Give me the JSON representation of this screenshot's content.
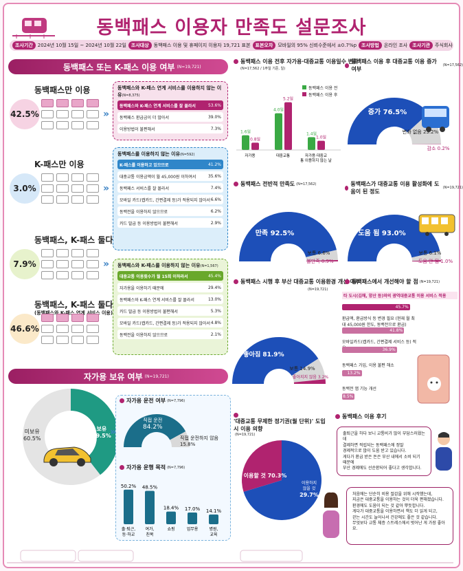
{
  "title": "동백패스 이용자 만족도 설문조사",
  "info": [
    {
      "tag": "조사기간",
      "text": "2024년 10월 15일 ~ 2024년 10월 22일"
    },
    {
      "tag": "조사대상",
      "text": "동백패스 이용 및 휴페이지 이용자 19,721 표본"
    },
    {
      "tag": "표본오차",
      "text": "모바일의 95% 신뢰수준에서 ±0.7%p"
    },
    {
      "tag": "조사방법",
      "text": "온라인 조사"
    },
    {
      "tag": "조사기관",
      "text": "주식회사 서던포스트"
    }
  ],
  "usage": {
    "title": "동백패스 또는 K-패스 이용 여부",
    "n": "(N=19,721)",
    "groups": [
      {
        "label": "동백패스만 이용",
        "pct": "42.5%",
        "color": "#f6d3e3"
      },
      {
        "label": "K-패스만 이용",
        "pct": "3.0%",
        "color": "#d6e8f8"
      },
      {
        "label": "동백패스, K-패스 둘다 비이용",
        "pct": "7.9%",
        "color": "#e7f2cc"
      },
      {
        "label": "동백패스, K-패스 둘다 이용",
        "sub": "(동백패스와 K-패스 연계 서비스 이용)",
        "pct": "46.6%",
        "color": "#fbe9c9"
      }
    ],
    "reasons": [
      {
        "title": "동백패스와 K-패스 연계 서비스를 이용하지 않는 이유",
        "n": "(N=8,375)",
        "accent": "#b0236f",
        "bg": "#f7e1ec",
        "items": [
          [
            "동백패스와 K-패스 연계 서비스를 잘 몰라서",
            "53.6%"
          ],
          [
            "동백패스 환급금이 더 많아서",
            "39.0%"
          ],
          [
            "이용방법이 불편해서",
            "7.3%"
          ]
        ]
      },
      {
        "title": "동백패스를 이용하지 않는 이유",
        "n": "(N=592)",
        "accent": "#2f86c9",
        "bg": "#dceefa",
        "items": [
          [
            "K-패스를 이용하고 있으므로",
            "41.2%"
          ],
          [
            "대중교통 이용금액이 월 45,000원 이하여서",
            "35.6%"
          ],
          [
            "동백패스 서비스를 잘 몰라서",
            "7.4%"
          ],
          [
            "모바일 카드(캡카드, 간편결제 등)가 적용되지 않아서",
            "6.6%"
          ],
          [
            "동백전을 이용하지 않으므로",
            "6.2%"
          ],
          [
            "카드 발급 등 이용방법이 불편해서",
            "2.9%"
          ]
        ]
      },
      {
        "title": "동백패스와 K-패스를 이용하지 않는 이유",
        "n": "(N=1,567)",
        "accent": "#69a82b",
        "bg": "#eaf4d8",
        "items": [
          [
            "대중교통 이용횟수가 월 15회 이하라서",
            "45.4%"
          ],
          [
            "자가용을 이용하기 때문에",
            "29.4%"
          ],
          [
            "동백패스와 K-패스 연계 서비스를 잘 몰라서",
            "13.0%"
          ],
          [
            "카드 발급 등 이용방법이 불편해서",
            "5.3%"
          ],
          [
            "모바일 카드(캡카드, 간편결제 등)가 적용되지 않아서",
            "4.8%"
          ],
          [
            "동백전을 이용하지 않으므로",
            "2.1%"
          ]
        ]
      }
    ]
  },
  "car": {
    "title": "자가용 보유 여부",
    "n": "(N=19,721)",
    "donut": [
      {
        "label": "보유",
        "value": 39.5,
        "color": "#1f9a83",
        "text": "39.5%"
      },
      {
        "label": "미보유",
        "value": 60.5,
        "color": "#e4e4e4",
        "text": "60.5%"
      }
    ],
    "drive": {
      "title": "자가용 운전 여부",
      "n": "(N=7,796)",
      "yes_label": "직접 운전",
      "yes": 84.2,
      "yes_text": "84.2%",
      "no_label": "직접 운전하지 않음",
      "no_text": "15.8%"
    },
    "purpose": {
      "title": "자가용 운행 목적",
      "n": "(N=7,796)",
      "bars": [
        {
          "label": "출·퇴근, 등·하교",
          "value": 50.2,
          "text": "50.2%"
        },
        {
          "label": "여가, 친목",
          "value": 48.5,
          "text": "48.5%"
        },
        {
          "label": "쇼핑",
          "value": 18.4,
          "text": "18.4%"
        },
        {
          "label": "업무용",
          "value": 17.0,
          "text": "17.0%"
        },
        {
          "label": "병원, 교육",
          "value": 14.1,
          "text": "14.1%"
        }
      ]
    }
  },
  "chart_data": [
    {
      "type": "bar",
      "title": "동백패스 이용 전후 자가용·대중교통 이용일수 변화",
      "subtitle": "(N=17,562 / 1주일 기준, 일)",
      "categories": [
        "자가용",
        "대중교통",
        "자가용·대중교통 이용하지 않는 날"
      ],
      "series": [
        {
          "name": "동백패스 이용 전",
          "values": [
            1.6,
            4.0,
            1.4
          ],
          "color": "#3aa944"
        },
        {
          "name": "동백패스 이용 후",
          "values": [
            0.8,
            5.2,
            1.0
          ],
          "color": "#b0236f"
        }
      ],
      "labels": [
        [
          "1.6일",
          "4.0일",
          "1.4일"
        ],
        [
          "0.8일",
          "5.2일",
          "1.0일"
        ]
      ],
      "ylim": [
        0,
        6
      ]
    },
    {
      "type": "pie",
      "title": "동백패스 이용 후 대중교통 이용 증가 여부",
      "n": "(N=17,562)",
      "slices": [
        {
          "label": "증가",
          "value": 76.5,
          "text": "76.5%"
        },
        {
          "label": "변화 없음",
          "value": 23.2,
          "text": "23.2%"
        },
        {
          "label": "감소",
          "value": 0.2,
          "text": "0.2%"
        }
      ]
    },
    {
      "type": "pie",
      "title": "동백패스 전반적 만족도",
      "n": "(N=17,562)",
      "slices": [
        {
          "label": "만족",
          "value": 92.5,
          "text": "92.5%"
        },
        {
          "label": "보통",
          "value": 6.6,
          "text": "6.6%"
        },
        {
          "label": "불만족",
          "value": 0.9,
          "text": "0.9%"
        }
      ]
    },
    {
      "type": "pie",
      "title": "동백패스가 대중교통 이용 활성화에 도움이 된 정도",
      "n": "(N=19,721)",
      "slices": [
        {
          "label": "도움 됨",
          "value": 93.0,
          "text": "93.0%"
        },
        {
          "label": "보통",
          "value": 6.1,
          "text": "6.1%"
        },
        {
          "label": "도움 안 됨",
          "value": 1.0,
          "text": "1.0%"
        }
      ]
    },
    {
      "type": "pie",
      "title": "동백패스 시행 후 부산 대중교통 이용환경 개선 여부",
      "n": "(N=19,721)",
      "slices": [
        {
          "label": "좋아짐",
          "value": 81.9,
          "text": "81.9%"
        },
        {
          "label": "보통",
          "value": 14.9,
          "text": "14.9%"
        },
        {
          "label": "좋아지지 않음",
          "value": 3.2,
          "text": "3.2%"
        }
      ]
    },
    {
      "type": "bar",
      "title": "동백패스에서 개선해야 할 점",
      "n": "(N=19,721)",
      "categories": [
        "타 도시(김해, 양산 등)와의 광역대중교통 이용 서비스 적용",
        "환급액, 환급방식 등 변경 필요 (현재 월 최대 45,000원 한도, 동백전으로 환급)",
        "모바일카드(캡카드, 간편결제 서비스 등) 적용",
        "동백패스 가입, 이용 불편 해소",
        "동백전 앱 기능 개선"
      ],
      "values": [
        45.7,
        41.8,
        36.9,
        13.2,
        8.5
      ],
      "labels": [
        "45.7%",
        "41.8%",
        "36.9%",
        "13.2%",
        "8.5%"
      ]
    },
    {
      "type": "pie",
      "title": "'대중교통 무제한 정기권(월 단위)' 도입 시 이용 의향",
      "n": "(N=19,721)",
      "slices": [
        {
          "label": "이용할 것",
          "value": 70.3,
          "text": "70.3%"
        },
        {
          "label": "이용하지 않을 것",
          "value": 29.7,
          "text": "29.7%"
        }
      ]
    }
  ],
  "review": {
    "title": "동백패스 이용 후기",
    "q1": [
      "출퇴근을 하다 보니 교통비가 많이 부담스러웠는데",
      "결제하면 적립되는 동백패스에 정말",
      "경제적으로 많이 도움 받고 있습니다.",
      "게다가 환급 받은 돈은 부산 내에서 소비 되기 때문에",
      "부산 경제에도 선순환되어 좋다고 생각합니다."
    ],
    "q2": [
      "처음에는 단순히 비용 절감을 위해 시작했는데,",
      "지금은 대중교통을 이용하는 것이 더욱 편해졌습니다.",
      "환경에도 도움이 되는 것 같아 뿌듯합니다.",
      "게다가 대중교통을 이용하면서 책도 더 읽게 되고,",
      "걷는 시간도 늘어나서 건강에도 좋은 것 같습니다.",
      "무엇보다 교통 체증 스트레스에서 벗어난 게 가장 좋아요."
    ]
  },
  "legend_before": "동백패스 이용 전",
  "legend_after": "동백패스 이용 후"
}
